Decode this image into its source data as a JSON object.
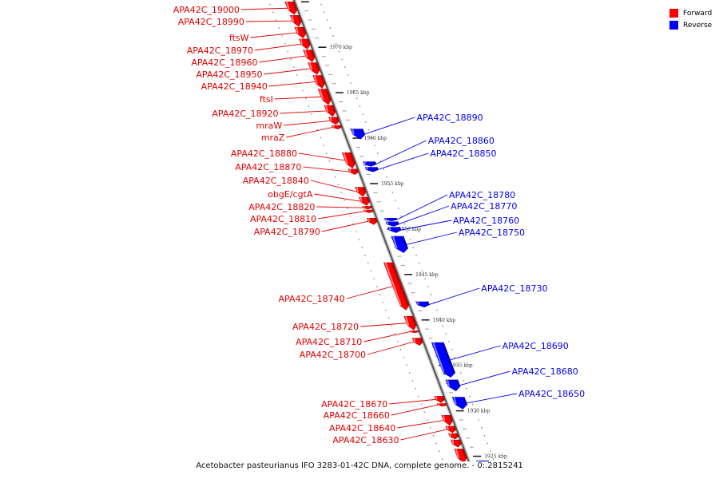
{
  "legend": {
    "forward_label": "Forward",
    "reverse_label": "Reverse",
    "forward_color": "#ff0000",
    "reverse_color": "#0000ff"
  },
  "caption": "Acetobacter pasteurianus IFO 3283-01-42C DNA, complete genome. - 0:.2815241",
  "ticks": [
    {
      "kbp": 1970,
      "label": "1970 kbp"
    },
    {
      "kbp": 1965,
      "label": "1965 kbp"
    },
    {
      "kbp": 1960,
      "label": "1960 kbp"
    },
    {
      "kbp": 1955,
      "label": "1955 kbp"
    },
    {
      "kbp": 1950,
      "label": "1950 kbp"
    },
    {
      "kbp": 1945,
      "label": "1945 kbp"
    },
    {
      "kbp": 1940,
      "label": "1940 kbp"
    },
    {
      "kbp": 1935,
      "label": "1935 kbp"
    },
    {
      "kbp": 1930,
      "label": "1930 kbp"
    },
    {
      "kbp": 1925,
      "label": "1925 kbp"
    }
  ],
  "forward_genes": [
    {
      "name": "APA42C_19000",
      "start": 1975.0,
      "end": 1973.6
    },
    {
      "name": "APA42C_18990",
      "start": 1973.5,
      "end": 1972.3
    },
    {
      "name": "ftsW",
      "start": 1972.2,
      "end": 1971.0
    },
    {
      "name": "APA42C_18970",
      "start": 1970.9,
      "end": 1969.8
    },
    {
      "name": "APA42C_18960",
      "start": 1969.7,
      "end": 1968.4
    },
    {
      "name": "APA42C_18950",
      "start": 1968.3,
      "end": 1967.0
    },
    {
      "name": "APA42C_18940",
      "start": 1966.9,
      "end": 1965.5
    },
    {
      "name": "ftsI",
      "start": 1965.4,
      "end": 1963.7
    },
    {
      "name": "APA42C_18920",
      "start": 1963.6,
      "end": 1962.4
    },
    {
      "name": "mraW",
      "start": 1962.3,
      "end": 1961.5
    },
    {
      "name": "mraZ",
      "start": 1961.4,
      "end": 1961.0
    },
    {
      "name": "APA42C_18880",
      "start": 1958.4,
      "end": 1956.7
    },
    {
      "name": "APA42C_18870",
      "start": 1956.6,
      "end": 1956.0
    },
    {
      "name": "APA42C_18840",
      "start": 1954.6,
      "end": 1953.6
    },
    {
      "name": "obgE/cgtA",
      "start": 1953.5,
      "end": 1952.6
    },
    {
      "name": "APA42C_18820",
      "start": 1952.5,
      "end": 1952.2
    },
    {
      "name": "APA42C_18810",
      "start": 1952.1,
      "end": 1951.8
    },
    {
      "name": "APA42C_18790",
      "start": 1951.2,
      "end": 1950.5
    },
    {
      "name": "APA42C_18740",
      "start": 1946.3,
      "end": 1941.1
    },
    {
      "name": "APA42C_18720",
      "start": 1940.4,
      "end": 1938.9
    },
    {
      "name": "APA42C_18710",
      "start": 1938.8,
      "end": 1938.6
    },
    {
      "name": "APA42C_18700",
      "start": 1938.0,
      "end": 1937.2
    },
    {
      "name": "APA42C_18670",
      "start": 1931.6,
      "end": 1930.9
    },
    {
      "name": "APA42C_18660",
      "start": 1930.8,
      "end": 1930.5
    },
    {
      "name": "APA42C_18640",
      "start": 1929.5,
      "end": 1928.4
    },
    {
      "name": "APA42C_18630",
      "start": 1928.3,
      "end": 1927.6
    },
    {
      "name": "",
      "start": 1927.5,
      "end": 1926.9
    },
    {
      "name": "",
      "start": 1926.8,
      "end": 1926.0
    },
    {
      "name": "",
      "start": 1925.8,
      "end": 1924.3
    }
  ],
  "reverse_genes": [
    {
      "name": "APA42C_18890",
      "start": 1961.0,
      "end": 1959.9
    },
    {
      "name": "APA42C_18860",
      "start": 1957.4,
      "end": 1956.9
    },
    {
      "name": "APA42C_18850",
      "start": 1956.8,
      "end": 1956.3
    },
    {
      "name": "APA42C_18780",
      "start": 1951.2,
      "end": 1950.9
    },
    {
      "name": "APA42C_18770",
      "start": 1950.8,
      "end": 1950.3
    },
    {
      "name": "APA42C_18760",
      "start": 1950.2,
      "end": 1949.6
    },
    {
      "name": "APA42C_18750",
      "start": 1949.2,
      "end": 1947.4
    },
    {
      "name": "APA42C_18730",
      "start": 1942.0,
      "end": 1941.4
    },
    {
      "name": "APA42C_18690",
      "start": 1937.5,
      "end": 1933.7
    },
    {
      "name": "APA42C_18680",
      "start": 1933.4,
      "end": 1932.2
    },
    {
      "name": "APA42C_18650",
      "start": 1931.5,
      "end": 1930.2
    },
    {
      "name": "",
      "start": 1924.5,
      "end": 1924.0
    }
  ]
}
